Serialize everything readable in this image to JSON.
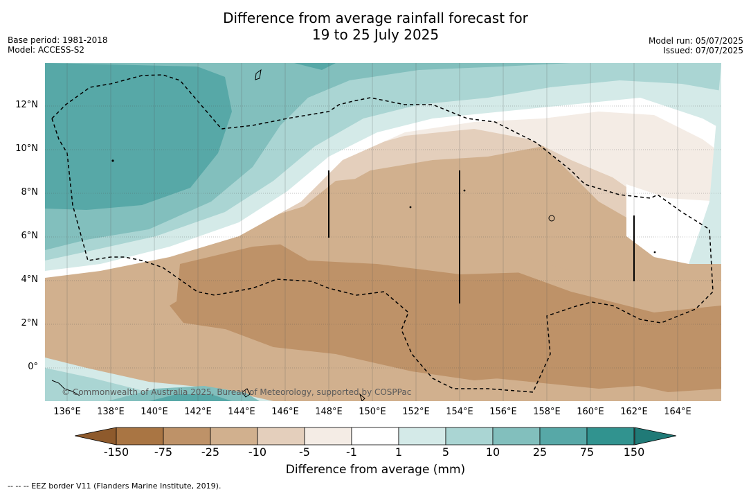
{
  "header": {
    "title_line1": "Difference from average rainfall forecast for",
    "title_line2": "19 to 25 July 2025",
    "base_period": "Base period: 1981-2018",
    "model": "Model: ACCESS-S2",
    "model_run": "Model run: 05/07/2025",
    "issued": "Issued: 07/07/2025"
  },
  "map": {
    "lat_labels": [
      "12°N",
      "10°N",
      "8°N",
      "6°N",
      "4°N",
      "2°N",
      "0°"
    ],
    "lon_labels": [
      "136°E",
      "138°E",
      "140°E",
      "142°E",
      "144°E",
      "146°E",
      "148°E",
      "150°E",
      "152°E",
      "154°E",
      "156°E",
      "158°E",
      "160°E",
      "162°E",
      "164°E"
    ],
    "copyright": "© Commonwealth of Australia 2025, Bureau of Meteorology, supported by COSPPac"
  },
  "colorbar": {
    "title": "Difference from average (mm)",
    "ticks": [
      "-150",
      "-75",
      "-25",
      "-10",
      "-5",
      "-1",
      "1",
      "5",
      "10",
      "25",
      "75",
      "150"
    ],
    "colors": [
      "#a97543",
      "#be9268",
      "#d1b08e",
      "#e4cfbc",
      "#f4ece5",
      "#ffffff",
      "#d4eae8",
      "#aad5d3",
      "#82bfbd",
      "#57a8a7",
      "#31938f"
    ],
    "extend_low_color": "#8e5a2c",
    "extend_high_color": "#207a77"
  },
  "footnote": "--  --  -- EEZ border V11 (Flanders Marine Institute, 2019)."
}
